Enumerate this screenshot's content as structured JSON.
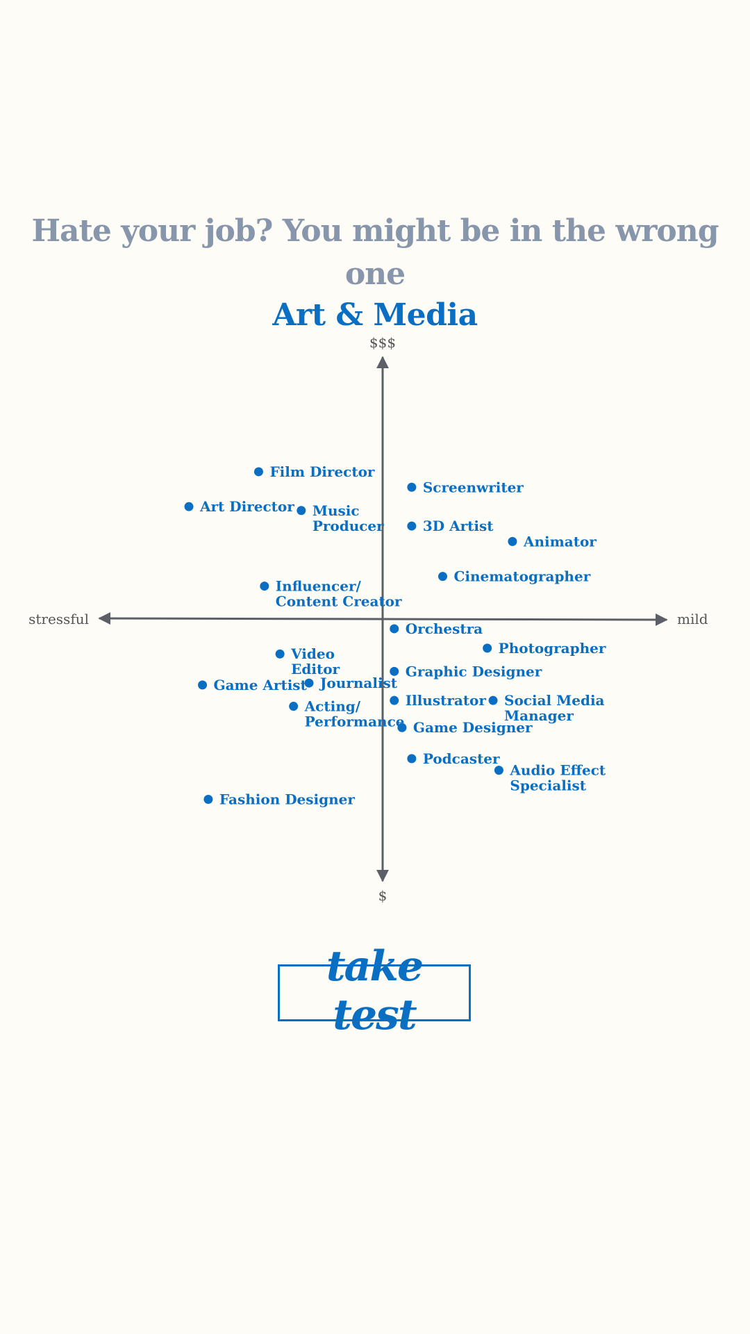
{
  "colors": {
    "background": "#fdfcf7",
    "title": "#8896ab",
    "accent": "#0a6fc2",
    "axis": "#5c5f66",
    "axis_text": "#555555"
  },
  "header": {
    "title": "Hate your job? You might be in the wrong one",
    "subtitle": "Art & Media"
  },
  "chart_data": {
    "type": "scatter",
    "x_axis": {
      "min_label": "stressful",
      "max_label": "mild",
      "range": [
        -10,
        10
      ]
    },
    "y_axis": {
      "min_label": "$",
      "max_label": "$$$",
      "range": [
        -10,
        10
      ]
    },
    "grid": false,
    "points": [
      {
        "label": [
          "Film Director"
        ],
        "x": -6.4,
        "y": 7.6
      },
      {
        "label": [
          "Art Director"
        ],
        "x": -10.0,
        "y": 5.8
      },
      {
        "label": [
          "Music",
          "Producer"
        ],
        "x": -4.2,
        "y": 5.6
      },
      {
        "label": [
          "Influencer/",
          "Content Creator"
        ],
        "x": -6.1,
        "y": 1.7
      },
      {
        "label": [
          "Screenwriter"
        ],
        "x": 1.5,
        "y": 6.8
      },
      {
        "label": [
          "3D Artist"
        ],
        "x": 1.5,
        "y": 4.8
      },
      {
        "label": [
          "Animator"
        ],
        "x": 6.7,
        "y": 4.0
      },
      {
        "label": [
          "Cinematographer"
        ],
        "x": 3.1,
        "y": 2.2
      },
      {
        "label": [
          "Orchestra"
        ],
        "x": 0.6,
        "y": -0.5
      },
      {
        "label": [
          "Photographer"
        ],
        "x": 5.4,
        "y": -1.5
      },
      {
        "label": [
          "Video",
          "Editor"
        ],
        "x": -5.3,
        "y": -1.8
      },
      {
        "label": [
          "Game Artist"
        ],
        "x": -9.3,
        "y": -3.4
      },
      {
        "label": [
          "Journalist"
        ],
        "x": -3.8,
        "y": -3.3
      },
      {
        "label": [
          "Graphic Designer"
        ],
        "x": 0.6,
        "y": -2.7
      },
      {
        "label": [
          "Acting/",
          "Performance"
        ],
        "x": -4.6,
        "y": -4.5
      },
      {
        "label": [
          "Illustrator"
        ],
        "x": 0.6,
        "y": -4.2
      },
      {
        "label": [
          "Social Media",
          "Manager"
        ],
        "x": 5.7,
        "y": -4.2
      },
      {
        "label": [
          "Game Designer"
        ],
        "x": 1.0,
        "y": -5.6
      },
      {
        "label": [
          "Podcaster"
        ],
        "x": 1.5,
        "y": -7.2
      },
      {
        "label": [
          "Audio Effect",
          "Specialist"
        ],
        "x": 6.0,
        "y": -7.8
      },
      {
        "label": [
          "Fashion Designer"
        ],
        "x": -9.0,
        "y": -9.3
      }
    ]
  },
  "cta": {
    "label": "take test"
  }
}
